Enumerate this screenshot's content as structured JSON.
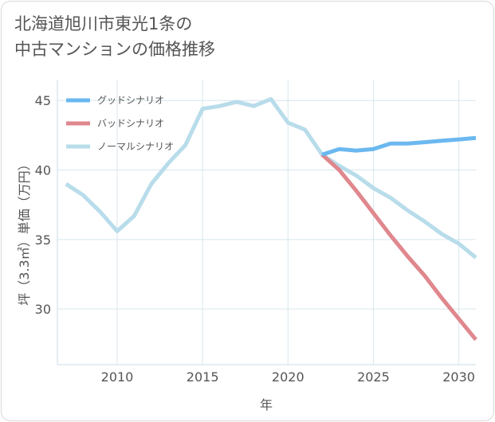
{
  "chart_data": {
    "type": "line",
    "title_line1": "北海道旭川市東光1条の",
    "title_line2": "中古マンションの価格推移",
    "xlabel": "年",
    "ylabel": "坪（3.3㎡）単価（万円）",
    "xlim": [
      2006.5,
      2031
    ],
    "ylim": [
      26,
      46.5
    ],
    "x_ticks": [
      2010,
      2015,
      2020,
      2025,
      2030
    ],
    "y_ticks": [
      30,
      35,
      40,
      45
    ],
    "grid": true,
    "legend_position": "top-left",
    "series": [
      {
        "name": "グッドシナリオ",
        "color": "#6bb8f0",
        "x": [
          2022,
          2023,
          2024,
          2025,
          2026,
          2027,
          2028,
          2029,
          2030,
          2031
        ],
        "values": [
          41.1,
          41.5,
          41.4,
          41.5,
          41.9,
          41.9,
          42.0,
          42.1,
          42.2,
          42.3
        ]
      },
      {
        "name": "バッドシナリオ",
        "color": "#e0878e",
        "x": [
          2022,
          2023,
          2024,
          2025,
          2026,
          2027,
          2028,
          2029,
          2030,
          2031
        ],
        "values": [
          41.1,
          40.0,
          38.5,
          36.9,
          35.3,
          33.8,
          32.4,
          30.8,
          29.3,
          27.8
        ]
      },
      {
        "name": "ノーマルシナリオ",
        "color": "#b8dcea",
        "x": [
          2007,
          2008,
          2009,
          2010,
          2011,
          2012,
          2013,
          2014,
          2015,
          2016,
          2017,
          2018,
          2019,
          2020,
          2021,
          2022,
          2023,
          2024,
          2025,
          2026,
          2027,
          2028,
          2029,
          2030,
          2031
        ],
        "values": [
          39.0,
          38.2,
          37.0,
          35.6,
          36.7,
          39.0,
          40.5,
          41.8,
          44.4,
          44.6,
          44.9,
          44.6,
          45.1,
          43.4,
          42.9,
          41.1,
          40.3,
          39.6,
          38.7,
          38.0,
          37.1,
          36.3,
          35.4,
          34.7,
          33.7
        ]
      }
    ]
  }
}
